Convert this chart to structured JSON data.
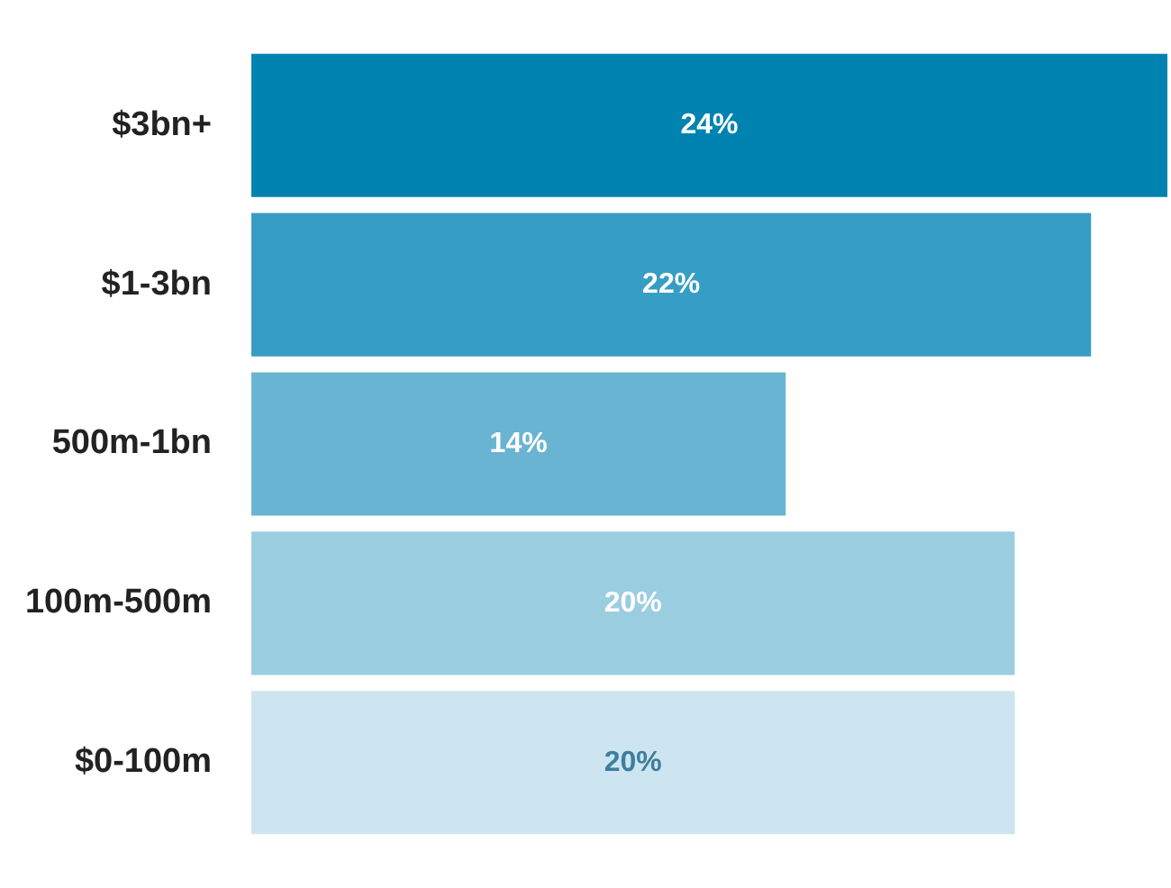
{
  "chart_data": {
    "type": "bar",
    "orientation": "horizontal",
    "categories": [
      "$3bn+",
      "$1-3bn",
      "500m-1bn",
      "100m-500m",
      "$0-100m"
    ],
    "values": [
      24,
      22,
      14,
      20,
      20
    ],
    "colors": [
      "#0083b0",
      "#369dc4",
      "#69b4d2",
      "#9bcde1",
      "#cde5f0"
    ],
    "value_labels": [
      "24%",
      "22%",
      "14%",
      "20%",
      "20%"
    ],
    "legend": false
  }
}
